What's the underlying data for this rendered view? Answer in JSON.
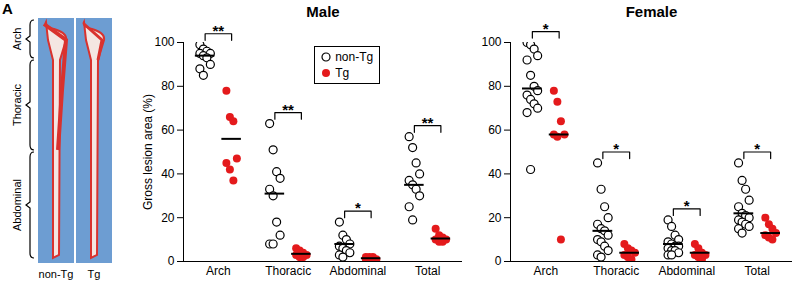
{
  "panel_label": "A",
  "image": {
    "regions": [
      "Arch",
      "Thoracic",
      "Abdominal"
    ],
    "samples": [
      "non-Tg",
      "Tg"
    ]
  },
  "chart_data": [
    {
      "type": "scatter",
      "title": "Male",
      "y_label": "Gross lesion area (%)",
      "categories": [
        "Arch",
        "Thoracic",
        "Abdominal",
        "Total"
      ],
      "ylim": [
        0,
        100
      ],
      "yticks": [
        0,
        20,
        40,
        60,
        80,
        100
      ],
      "legend": "top",
      "series": [
        {
          "name": "non-Tg",
          "color": "#000000",
          "marker": "open circle",
          "values": [
            [
              99,
              97,
              96,
              95,
              95,
              94,
              93,
              90,
              88,
              85
            ],
            [
              63,
              51,
              41,
              38,
              33,
              30,
              18,
              12,
              8,
              8
            ],
            [
              18,
              12,
              10,
              8,
              7,
              6,
              5,
              4,
              3,
              2
            ],
            [
              57,
              52,
              45,
              40,
              37,
              35,
              33,
              30,
              25,
              19
            ]
          ],
          "means": [
            94,
            31,
            8,
            35
          ]
        },
        {
          "name": "Tg",
          "color": "#e41a1c",
          "marker": "circle",
          "values": [
            [
              78,
              66,
              64,
              47,
              45,
              42,
              37
            ],
            [
              6,
              5,
              4,
              3,
              3,
              2,
              2
            ],
            [
              2,
              2,
              1,
              1,
              1,
              1,
              2
            ],
            [
              15,
              12,
              11,
              10,
              10,
              9,
              9
            ]
          ],
          "means": [
            56,
            3.5,
            1.5,
            10.5
          ]
        }
      ],
      "significance": [
        "**",
        "**",
        "*",
        "**"
      ]
    },
    {
      "type": "scatter",
      "title": "Female",
      "categories": [
        "Arch",
        "Thoracic",
        "Abdominal",
        "Total"
      ],
      "ylim": [
        0,
        100
      ],
      "yticks": [
        0,
        20,
        40,
        60,
        80,
        100
      ],
      "series": [
        {
          "name": "non-Tg",
          "color": "#000000",
          "marker": "open circle",
          "values": [
            [
              100,
              99,
              97,
              94,
              92,
              85,
              80,
              78,
              76,
              74,
              72,
              70,
              68,
              42
            ],
            [
              45,
              33,
              25,
              20,
              17,
              15,
              14,
              12,
              10,
              9,
              7,
              5,
              3,
              2
            ],
            [
              19,
              16,
              12,
              10,
              9,
              8,
              7,
              7,
              6,
              5,
              5,
              4,
              3,
              3
            ],
            [
              45,
              37,
              33,
              28,
              25,
              22,
              21,
              20,
              19,
              18,
              17,
              16,
              15,
              13
            ]
          ],
          "means": [
            79,
            14,
            8,
            22
          ]
        },
        {
          "name": "Tg",
          "color": "#e41a1c",
          "marker": "circle",
          "values": [
            [
              78,
              73,
              64,
              58,
              58,
              57,
              10
            ],
            [
              8,
              6,
              5,
              4,
              3,
              2,
              1
            ],
            [
              8,
              6,
              4,
              3,
              3,
              2,
              1
            ],
            [
              20,
              17,
              15,
              13,
              12,
              11,
              10
            ]
          ],
          "means": [
            58,
            4,
            4,
            13
          ]
        }
      ],
      "significance": [
        "*",
        "*",
        "*",
        "*"
      ]
    }
  ]
}
